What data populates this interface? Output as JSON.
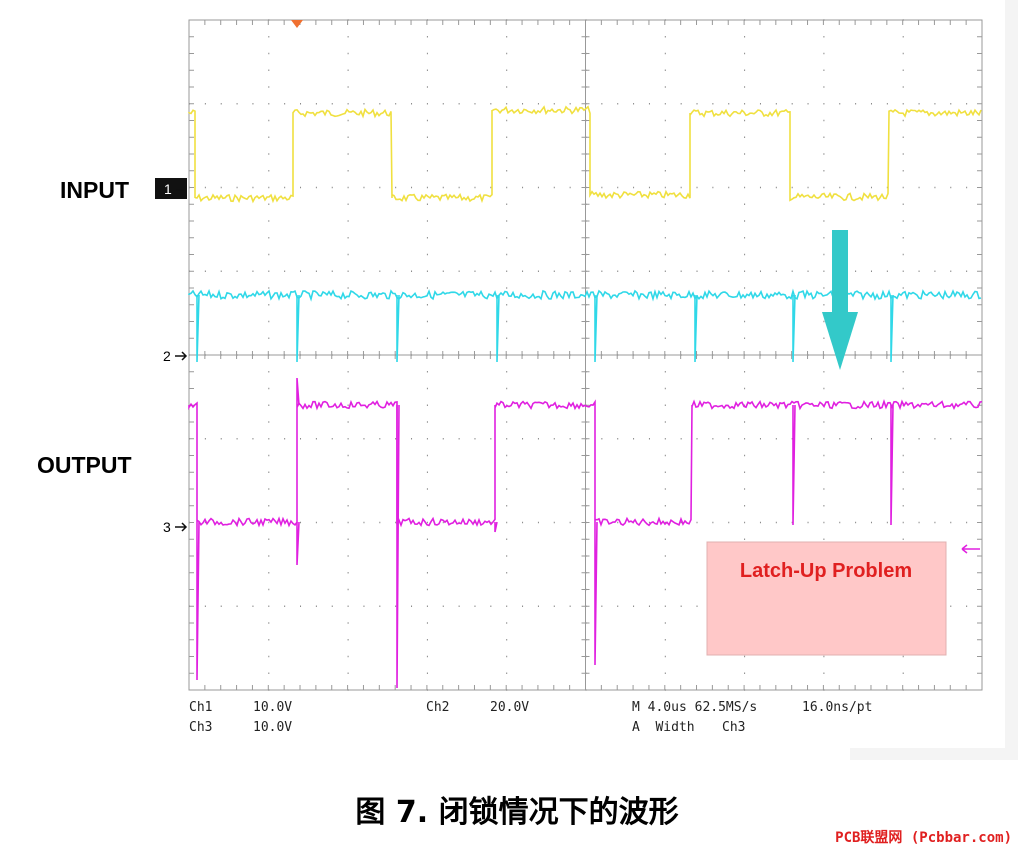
{
  "labels": {
    "input": "INPUT",
    "output": "OUTPUT",
    "marker_1": "1",
    "marker_2": "2",
    "marker_3": "3"
  },
  "readout": {
    "ch1": "Ch1",
    "ch1_scale": "10.0V",
    "ch3": "Ch3",
    "ch3_scale": "10.0V",
    "ch2": "Ch2",
    "ch2_scale": "20.0V",
    "timebase": "M 4.0us 62.5MS/s",
    "resolution": "16.0ns/pt",
    "trigger": "A  Width",
    "trigger_source": "Ch3"
  },
  "annotation": "Latch-Up Problem",
  "caption": "图 7. 闭锁情况下的波形",
  "watermark": "PCB联盟网 (Pcbbar.com)"
}
